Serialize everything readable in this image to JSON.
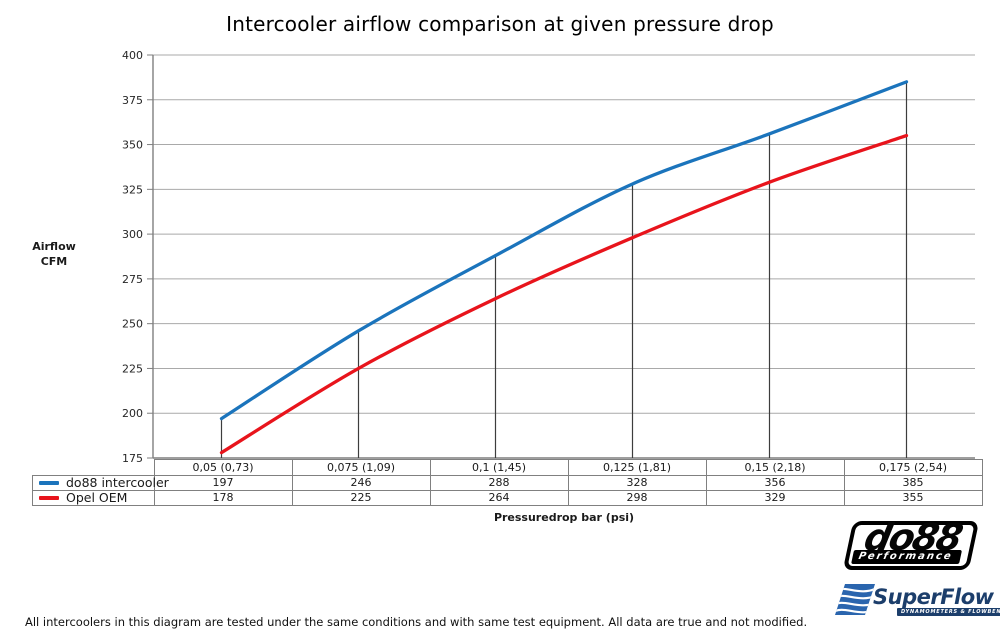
{
  "page": {
    "title": "Intercooler airflow comparison at given pressure drop",
    "disclaimer": "All intercoolers in this diagram are tested under the same conditions and with same test equipment. All data are true and not modified."
  },
  "chart_data": {
    "type": "line",
    "title": "Intercooler airflow comparison at given pressure drop",
    "categories": [
      "0,05 (0,73)",
      "0,075 (1,09)",
      "0,1 (1,45)",
      "0,125 (1,81)",
      "0,15 (2,18)",
      "0,175 (2,54)"
    ],
    "series": [
      {
        "name": "do88 intercooler",
        "color": "#1B74BC",
        "values": [
          197,
          246,
          288,
          328,
          356,
          385
        ]
      },
      {
        "name": "Opel OEM",
        "color": "#E8141C",
        "values": [
          178,
          225,
          264,
          298,
          329,
          355
        ]
      }
    ],
    "xlabel": "Pressuredrop bar (psi)",
    "ylabel": [
      "Airflow",
      "CFM"
    ],
    "ylim": [
      175,
      400
    ],
    "yticks": [
      400,
      375,
      350,
      325,
      300,
      275,
      250,
      225,
      200,
      175
    ],
    "grid": "horizontal-on",
    "legend_position": "table-left",
    "line_style": "smooth",
    "drop_lines": true,
    "grid_color": "#A9A9A9",
    "axis_color": "#7F7F7F",
    "drop_line_color": "#3D3D3D",
    "tick_label_color": "#262626"
  },
  "logos": {
    "do88": {
      "text": "do88",
      "subtext": "Performance"
    },
    "superflow": {
      "text": "SuperFlow",
      "subtext": "DYNAMOMETERS & FLOWBENCHES",
      "brand_color": "#1C3E6B",
      "flag_color": "#2A65AE"
    }
  }
}
